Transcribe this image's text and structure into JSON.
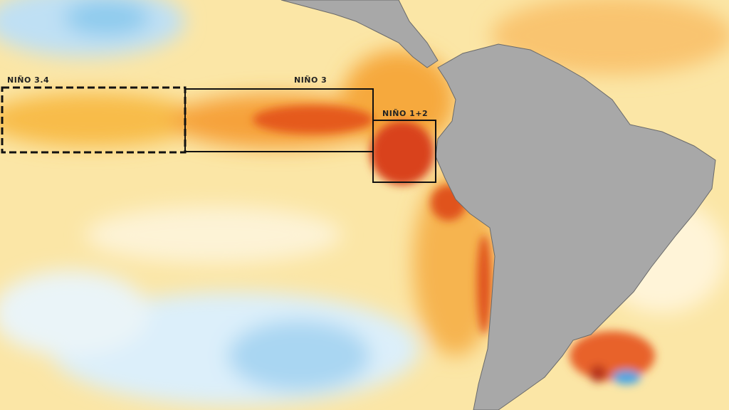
{
  "regions": [
    {
      "label": "NIÑO 3.4"
    },
    {
      "label": "NIÑO 3"
    },
    {
      "label": "NIÑO 1+2"
    }
  ]
}
